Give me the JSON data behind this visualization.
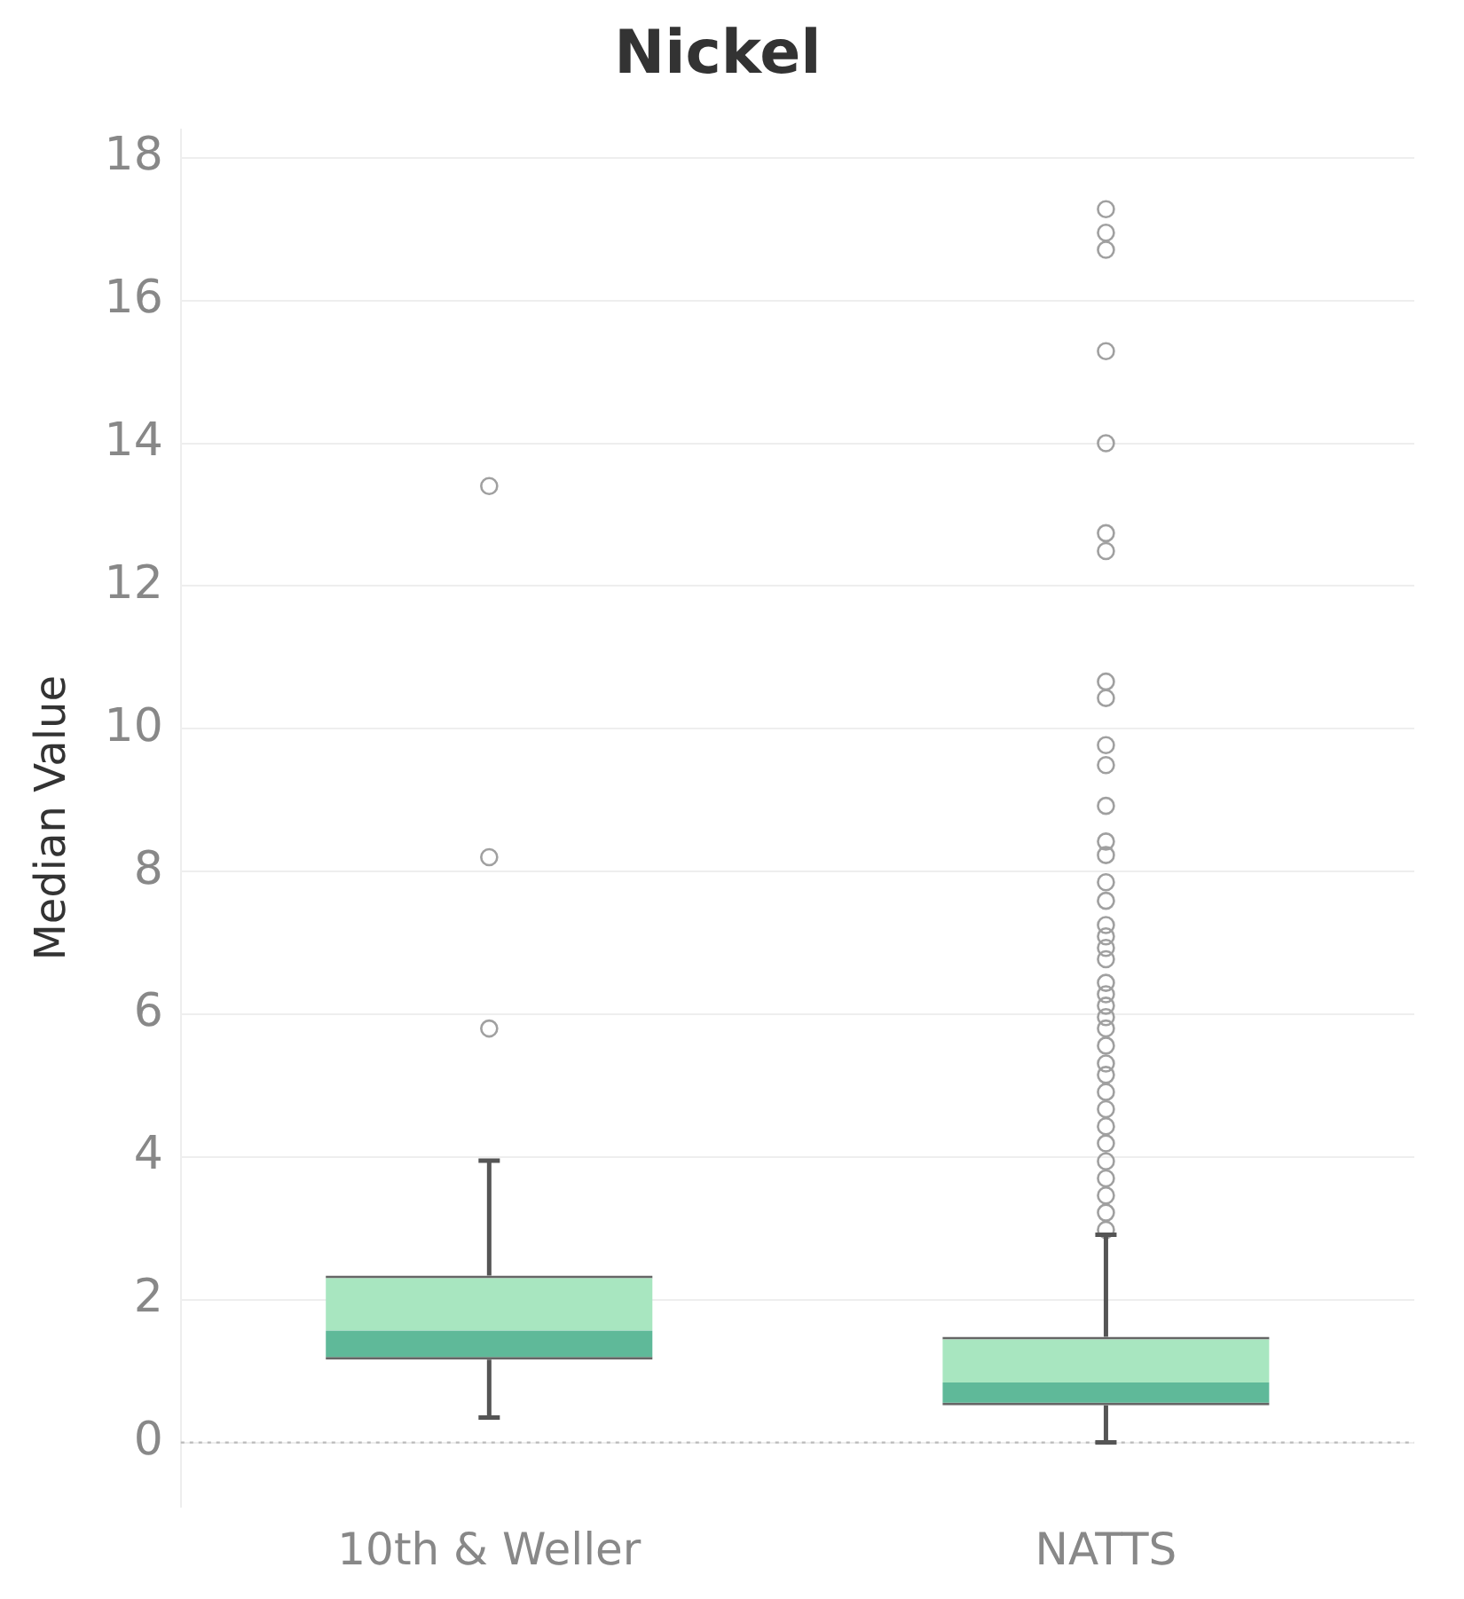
{
  "chart_data": {
    "type": "box",
    "title": "Nickel",
    "ylabel": "Median Value",
    "categories": [
      "10th & Weller",
      "NATTS"
    ],
    "series": [
      {
        "color": "#a8e6c0",
        "colors": [
          "#5fb999",
          "#5fb999"
        ],
        "boxes": [
          {
            "low": 0.35,
            "q1": 1.16,
            "median": 1.57,
            "q3": 2.34,
            "high": 3.95,
            "outliers": [
              5.8,
              8.2,
              13.4
            ]
          },
          {
            "low": 0,
            "q1": 0.52,
            "median": 0.84,
            "q3": 1.48,
            "high": 2.91,
            "outliers": [
              2.98,
              3.22,
              3.46,
              3.7,
              3.94,
              4.19,
              4.43,
              4.67,
              4.91,
              5.15,
              5.31,
              5.56,
              5.8,
              5.96,
              6.12,
              6.28,
              6.44,
              6.77,
              6.93,
              7.09,
              7.25,
              7.59,
              7.85,
              8.23,
              8.42,
              8.92,
              9.49,
              9.77,
              10.43,
              10.66,
              12.49,
              12.74,
              14.0,
              15.29,
              16.71,
              16.95,
              17.28
            ]
          }
        ]
      }
    ],
    "ylim": [
      -0.9,
      18.4
    ],
    "yticks": [
      0,
      2,
      4,
      6,
      8,
      10,
      12,
      14,
      16,
      18
    ],
    "grid": "y",
    "marker": "circle",
    "ref_lines": [
      {
        "axis": "y",
        "value": 0,
        "line_style": "dotted",
        "color": "#bbbbbb"
      }
    ]
  }
}
